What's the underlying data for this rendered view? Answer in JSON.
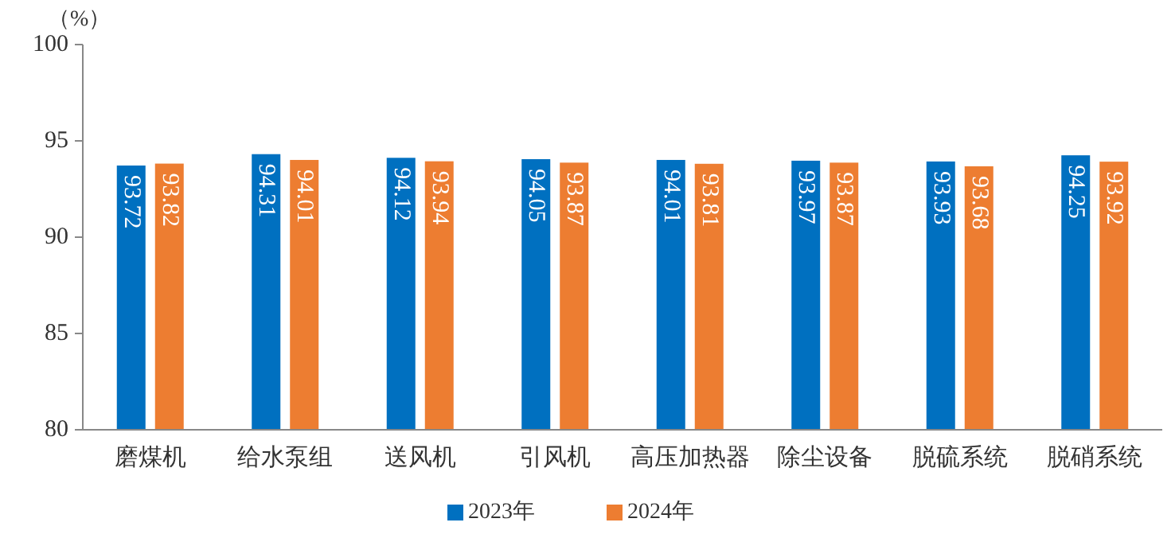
{
  "chart_data": {
    "type": "bar",
    "ylabel": "（%）",
    "categories": [
      "磨煤机",
      "给水泵组",
      "送风机",
      "引风机",
      "高压加热器",
      "除尘设备",
      "脱硫系统",
      "脱硝系统"
    ],
    "series": [
      {
        "name": "2023年",
        "color": "#0070c0",
        "values": [
          93.72,
          94.31,
          94.12,
          94.05,
          94.01,
          93.97,
          93.93,
          94.25
        ]
      },
      {
        "name": "2024年",
        "color": "#ed7d31",
        "values": [
          93.82,
          94.01,
          93.94,
          93.87,
          93.81,
          93.87,
          93.68,
          93.92
        ]
      }
    ],
    "ylim": [
      80,
      100
    ],
    "yticks": [
      80,
      85,
      90,
      95,
      100
    ],
    "grid": false,
    "legend": "bottom",
    "data_labels": true
  }
}
